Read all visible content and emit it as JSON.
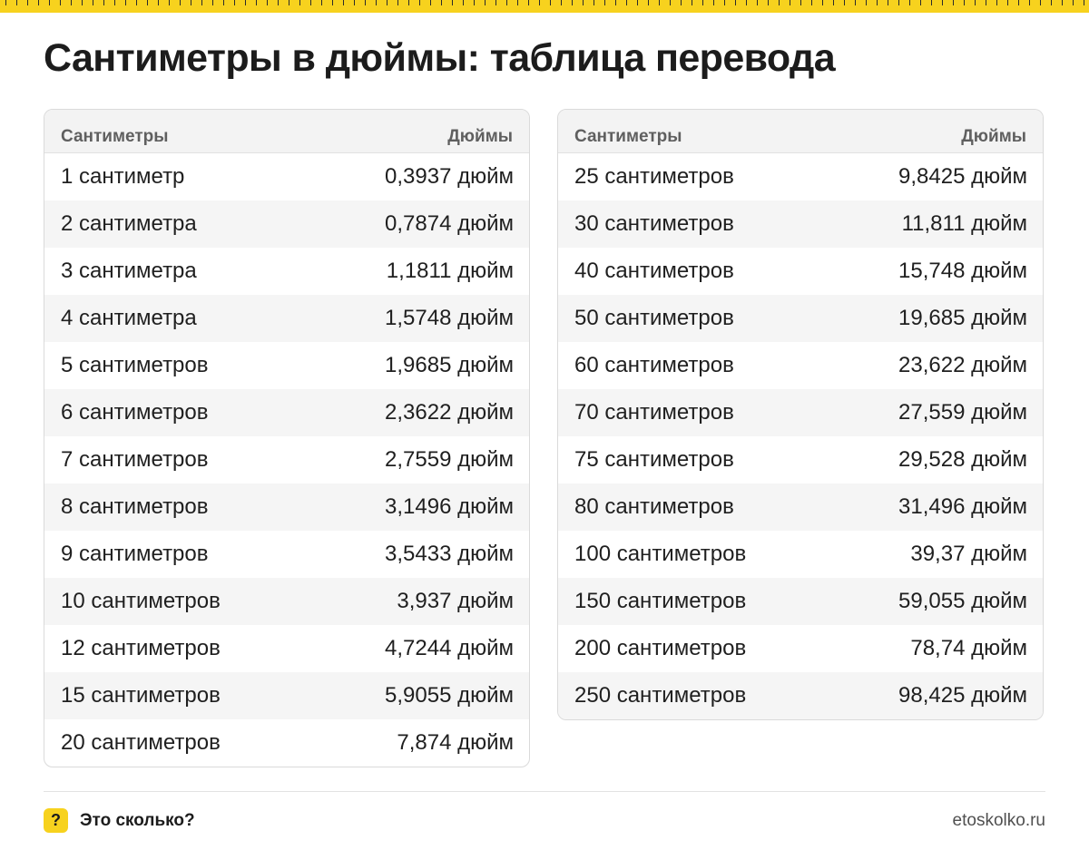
{
  "title": "Сантиметры в дюймы: таблица перевода",
  "table_left": {
    "header": {
      "cm": "Сантиметры",
      "inch": "Дюймы"
    },
    "rows": [
      {
        "cm": "1 сантиметр",
        "inch": "0,3937 дюйм"
      },
      {
        "cm": "2 сантиметра",
        "inch": "0,7874 дюйм"
      },
      {
        "cm": "3 сантиметра",
        "inch": "1,1811 дюйм"
      },
      {
        "cm": "4 сантиметра",
        "inch": "1,5748 дюйм"
      },
      {
        "cm": "5 сантиметров",
        "inch": "1,9685 дюйм"
      },
      {
        "cm": "6 сантиметров",
        "inch": "2,3622 дюйм"
      },
      {
        "cm": "7 сантиметров",
        "inch": "2,7559 дюйм"
      },
      {
        "cm": "8 сантиметров",
        "inch": "3,1496 дюйм"
      },
      {
        "cm": "9 сантиметров",
        "inch": "3,5433 дюйм"
      },
      {
        "cm": "10 сантиметров",
        "inch": "3,937 дюйм"
      },
      {
        "cm": "12 сантиметров",
        "inch": "4,7244 дюйм"
      },
      {
        "cm": "15 сантиметров",
        "inch": "5,9055 дюйм"
      },
      {
        "cm": "20 сантиметров",
        "inch": "7,874 дюйм"
      }
    ]
  },
  "table_right": {
    "header": {
      "cm": "Сантиметры",
      "inch": "Дюймы"
    },
    "rows": [
      {
        "cm": "25 сантиметров",
        "inch": "9,8425 дюйм"
      },
      {
        "cm": "30 сантиметров",
        "inch": "11,811 дюйм"
      },
      {
        "cm": "40 сантиметров",
        "inch": "15,748 дюйм"
      },
      {
        "cm": "50 сантиметров",
        "inch": "19,685 дюйм"
      },
      {
        "cm": "60 сантиметров",
        "inch": "23,622 дюйм"
      },
      {
        "cm": "70 сантиметров",
        "inch": "27,559 дюйм"
      },
      {
        "cm": "75 сантиметров",
        "inch": "29,528 дюйм"
      },
      {
        "cm": "80 сантиметров",
        "inch": "31,496 дюйм"
      },
      {
        "cm": "100 сантиметров",
        "inch": "39,37 дюйм"
      },
      {
        "cm": "150 сантиметров",
        "inch": "59,055 дюйм"
      },
      {
        "cm": "200 сантиметров",
        "inch": "78,74 дюйм"
      },
      {
        "cm": "250 сантиметров",
        "inch": "98,425 дюйм"
      }
    ]
  },
  "footer": {
    "logo_symbol": "?",
    "brand": "Это сколько?",
    "site": "etoskolko.ru"
  },
  "colors": {
    "accent": "#f7d21e",
    "text": "#1f1f1f",
    "stripe": "#f5f5f5",
    "border": "#dadada"
  },
  "icons": {
    "ruler": "ruler-strip-decoration",
    "logo": "question-mark-badge-icon"
  }
}
